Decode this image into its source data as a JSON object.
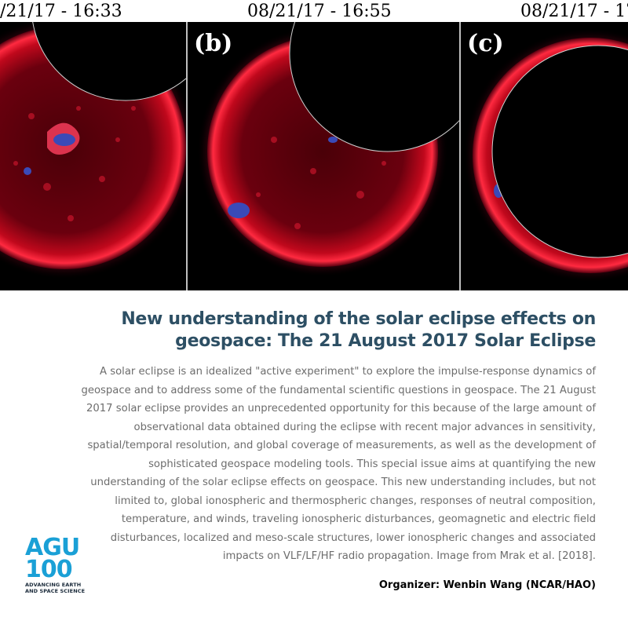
{
  "panels": [
    {
      "timestamp": "/21/17 - 16:33",
      "letter": ""
    },
    {
      "timestamp": "08/21/17 - 16:55",
      "letter": "(b)"
    },
    {
      "timestamp": "08/21/17 - 17",
      "letter": "(c)"
    }
  ],
  "title": {
    "line1": "New understanding of the solar eclipse effects on",
    "line2": "geospace: The 21 August 2017 Solar Eclipse"
  },
  "body": "A solar eclipse is an idealized \"active experiment\" to explore the impulse-response dynamics of geospace and to address some of the fundamental scientific questions in geospace. The 21 August 2017 solar eclipse provides an unprecedented opportunity for this because of the large amount of observational data obtained during the eclipse with recent major advances in sensitivity, spatial/temporal resolution, and global coverage of measurements, as well as the development of sophisticated geospace modeling tools. This special issue aims at quantifying the new understanding of the solar eclipse effects on geospace. This new understanding includes, but not limited to, global ionospheric and thermospheric changes, responses of neutral composition, temperature, and winds, traveling ionospheric disturbances, geomagnetic and electric field disturbances, localized and meso-scale structures,  lower ionospheric changes and associated impacts on VLF/LF/HF radio propagation. Image from Mrak et al. [2018].",
  "organizer": "Organizer: Wenbin Wang (NCAR/HAO)",
  "logo": {
    "line1": "AGU",
    "line2": "100",
    "tagline1": "ADVANCING EARTH",
    "tagline2": "AND SPACE SCIENCE"
  },
  "colors": {
    "title": "#2d4f64",
    "body": "#6d6d6d",
    "logo": "#1aa0d6",
    "sun_red": "#e0102a"
  }
}
